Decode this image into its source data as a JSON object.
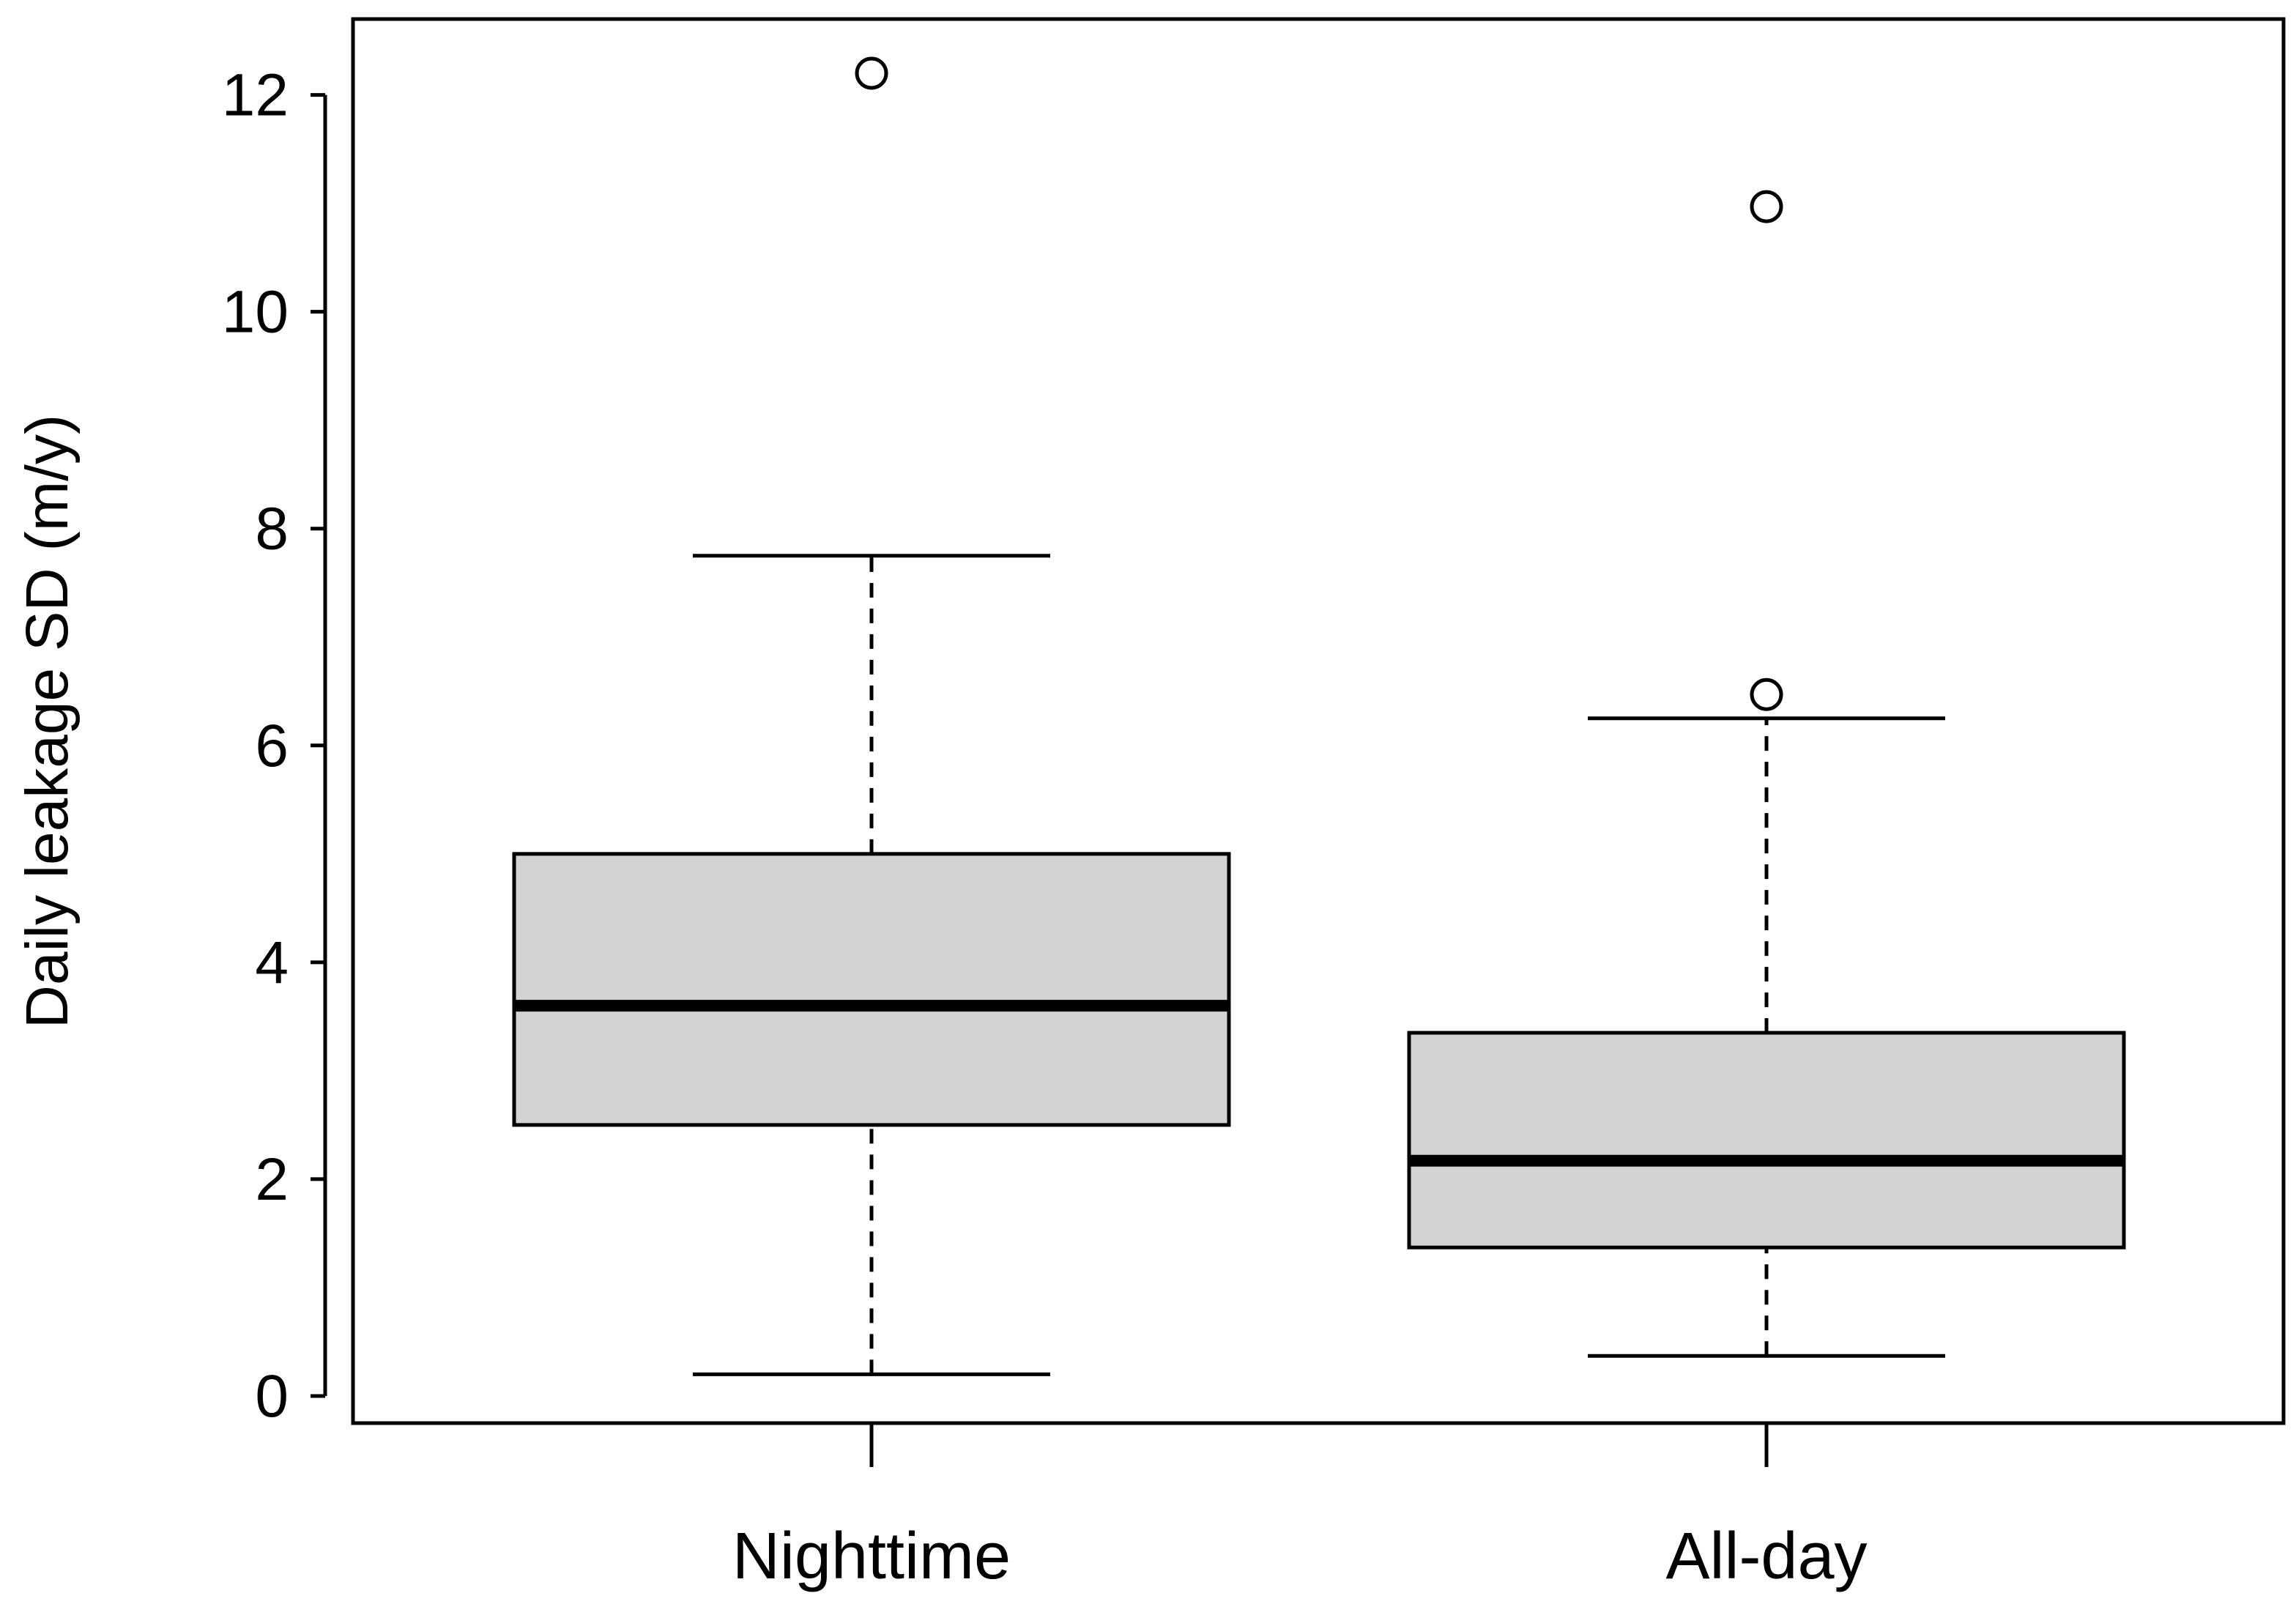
{
  "chart_data": {
    "type": "boxplot",
    "title": "",
    "xlabel": "",
    "ylabel": "Daily leakage SD (m/y)",
    "ylim": [
      -0.25,
      12.7
    ],
    "yticks": [
      0,
      2,
      4,
      6,
      8,
      10,
      12
    ],
    "grid": false,
    "legend": "none",
    "box_fill": "#d3d3d3",
    "line_color": "#000000",
    "categories": [
      "Nighttime",
      "All-day"
    ],
    "boxes": [
      {
        "category": "Nighttime",
        "whisker_low": 0.2,
        "q1": 2.5,
        "median": 3.6,
        "q3": 5.0,
        "whisker_high": 7.75,
        "outliers": [
          12.2
        ]
      },
      {
        "category": "All-day",
        "whisker_low": 0.37,
        "q1": 1.37,
        "median": 2.17,
        "q3": 3.35,
        "whisker_high": 6.25,
        "outliers": [
          6.47,
          10.97
        ]
      }
    ]
  }
}
